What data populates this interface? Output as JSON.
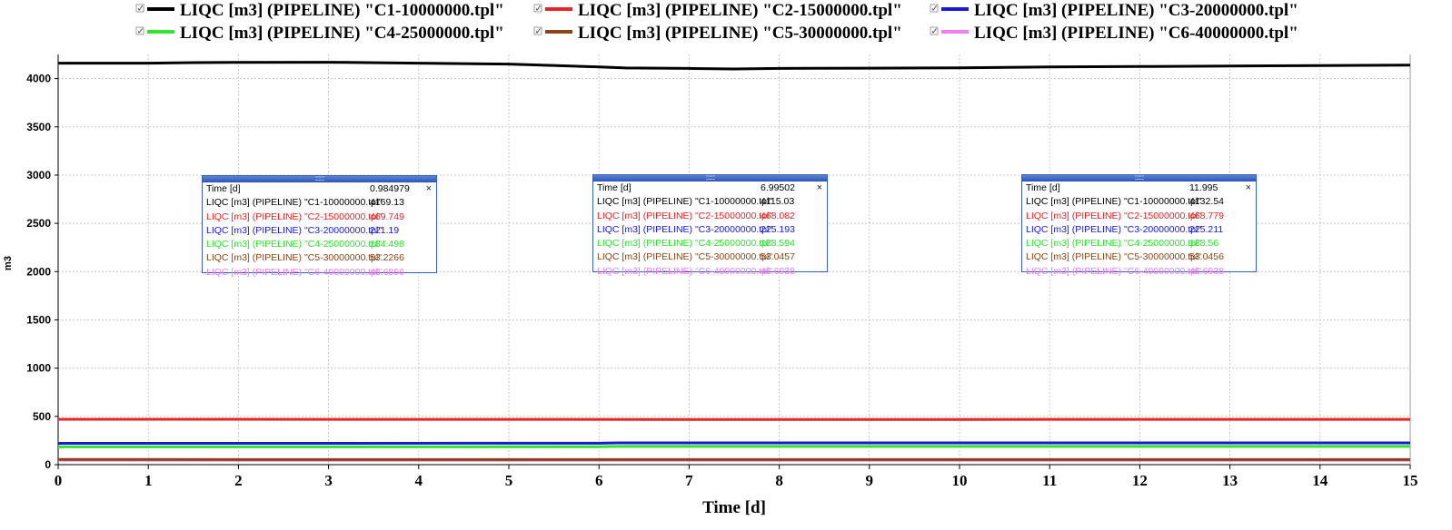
{
  "chart_data": {
    "type": "line",
    "title": "",
    "xlabel": "Time [d]",
    "ylabel": "m3",
    "xlim": [
      0,
      15
    ],
    "ylim": [
      0,
      4250
    ],
    "x_ticks": [
      "0",
      "1",
      "2",
      "3",
      "4",
      "5",
      "6",
      "7",
      "8",
      "9",
      "10",
      "11",
      "12",
      "13",
      "14",
      "15"
    ],
    "y_ticks": [
      "0",
      "500",
      "1000",
      "1500",
      "2000",
      "2500",
      "3000",
      "3500",
      "4000"
    ],
    "grid": true,
    "legend_position": "top",
    "series": [
      {
        "name": "LIQC [m3] (PIPELINE) \"C1-10000000.tpl\"",
        "color": "#000000",
        "points": [
          [
            0,
            4160
          ],
          [
            1,
            4160
          ],
          [
            1.5,
            4165
          ],
          [
            2,
            4168
          ],
          [
            3,
            4169
          ],
          [
            4,
            4160
          ],
          [
            5,
            4150
          ],
          [
            6,
            4120
          ],
          [
            6.3,
            4110
          ],
          [
            7,
            4105
          ],
          [
            7.5,
            4100
          ],
          [
            8,
            4105
          ],
          [
            9,
            4108
          ],
          [
            10,
            4112
          ],
          [
            11,
            4120
          ],
          [
            12,
            4125
          ],
          [
            13,
            4130
          ],
          [
            14,
            4135
          ],
          [
            15,
            4140
          ]
        ]
      },
      {
        "name": "LIQC [m3] (PIPELINE) \"C2-15000000.tpl\"",
        "color": "#e32626",
        "points": [
          [
            0,
            469.7
          ],
          [
            5,
            469.2
          ],
          [
            7,
            468.1
          ],
          [
            10,
            468.4
          ],
          [
            12,
            468.8
          ],
          [
            15,
            468.8
          ]
        ]
      },
      {
        "name": "LIQC [m3] (PIPELINE) \"C3-20000000.tpl\"",
        "color": "#1a1ad6",
        "points": [
          [
            0,
            221.2
          ],
          [
            6,
            222.0
          ],
          [
            6.2,
            225.2
          ],
          [
            9,
            225.2
          ],
          [
            12,
            225.2
          ],
          [
            15,
            225.2
          ]
        ]
      },
      {
        "name": "LIQC [m3] (PIPELINE) \"C4-25000000.tpl\"",
        "color": "#2ee62e",
        "points": [
          [
            0,
            184.5
          ],
          [
            6,
            185.5
          ],
          [
            6.2,
            188.6
          ],
          [
            12,
            188.6
          ],
          [
            15,
            188.6
          ]
        ]
      },
      {
        "name": "LIQC [m3] (PIPELINE) \"C5-30000000.tpl\"",
        "color": "#8b4513",
        "points": [
          [
            0,
            53.2
          ],
          [
            6,
            53.1
          ],
          [
            7,
            53.05
          ],
          [
            12,
            53.05
          ],
          [
            15,
            53.05
          ]
        ]
      },
      {
        "name": "LIQC [m3] (PIPELINE) \"C6-40000000.tpl\"",
        "color": "#f07ef0",
        "points": [
          [
            0,
            45.7
          ],
          [
            15,
            45.7
          ]
        ]
      }
    ]
  },
  "tooltips": [
    {
      "time_label": "Time [d]",
      "time_value": "0.984979",
      "close": "×",
      "rows": [
        {
          "label": "LIQC [m3] (PIPELINE) \"C1-10000000.tpl\"",
          "value": "4169.13",
          "color": "#000000"
        },
        {
          "label": "LIQC [m3] (PIPELINE) \"C2-15000000.tpl\"",
          "value": "469.749",
          "color": "#e32626"
        },
        {
          "label": "LIQC [m3] (PIPELINE) \"C3-20000000.tpl\"",
          "value": "221.19",
          "color": "#1a1ad6"
        },
        {
          "label": "LIQC [m3] (PIPELINE) \"C4-25000000.tpl\"",
          "value": "184.498",
          "color": "#2ee62e"
        },
        {
          "label": "LIQC [m3] (PIPELINE) \"C5-30000000.tpl\"",
          "value": "53.2266",
          "color": "#8b4513"
        },
        {
          "label": "LIQC [m3] (PIPELINE) \"C6-40000000.tpl\"",
          "value": "45.6866",
          "color": "#f07ef0"
        }
      ]
    },
    {
      "time_label": "Time [d]",
      "time_value": "6.99502",
      "close": "×",
      "rows": [
        {
          "label": "LIQC [m3] (PIPELINE) \"C1-10000000.tpl\"",
          "value": "4115.03",
          "color": "#000000"
        },
        {
          "label": "LIQC [m3] (PIPELINE) \"C2-15000000.tpl\"",
          "value": "468.082",
          "color": "#e32626"
        },
        {
          "label": "LIQC [m3] (PIPELINE) \"C3-20000000.tpl\"",
          "value": "225.193",
          "color": "#1a1ad6"
        },
        {
          "label": "LIQC [m3] (PIPELINE) \"C4-25000000.tpl\"",
          "value": "188.594",
          "color": "#2ee62e"
        },
        {
          "label": "LIQC [m3] (PIPELINE) \"C5-30000000.tpl\"",
          "value": "53.0457",
          "color": "#8b4513"
        },
        {
          "label": "LIQC [m3] (PIPELINE) \"C6-40000000.tpl\"",
          "value": "45.6938",
          "color": "#f07ef0"
        }
      ]
    },
    {
      "time_label": "Time [d]",
      "time_value": "11.995",
      "close": "×",
      "rows": [
        {
          "label": "LIQC [m3] (PIPELINE) \"C1-10000000.tpl\"",
          "value": "4132.54",
          "color": "#000000"
        },
        {
          "label": "LIQC [m3] (PIPELINE) \"C2-15000000.tpl\"",
          "value": "468.779",
          "color": "#e32626"
        },
        {
          "label": "LIQC [m3] (PIPELINE) \"C3-20000000.tpl\"",
          "value": "225.211",
          "color": "#1a1ad6"
        },
        {
          "label": "LIQC [m3] (PIPELINE) \"C4-25000000.tpl\"",
          "value": "188.56",
          "color": "#2ee62e"
        },
        {
          "label": "LIQC [m3] (PIPELINE) \"C5-30000000.tpl\"",
          "value": "53.0456",
          "color": "#8b4513"
        },
        {
          "label": "LIQC [m3] (PIPELINE) \"C6-40000000.tpl\"",
          "value": "45.6938",
          "color": "#f07ef0"
        }
      ]
    }
  ]
}
